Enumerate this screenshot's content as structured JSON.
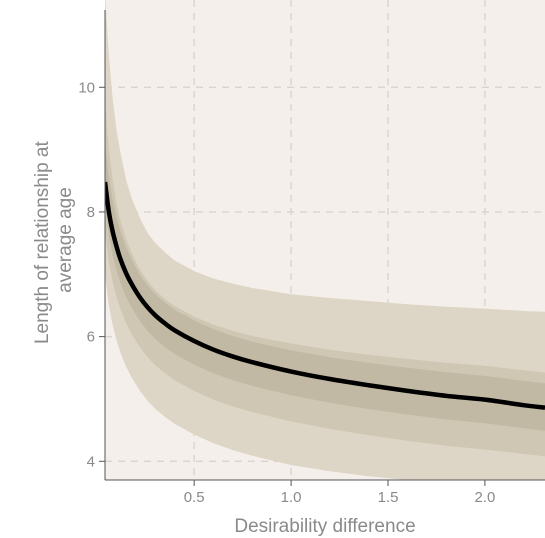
{
  "chart_data": {
    "type": "line",
    "title": "",
    "xlabel": "Desirability difference",
    "ylabel_lines": [
      "Length of relationship at",
      "average age"
    ],
    "xlim": [
      0.04,
      2.31
    ],
    "ylim": [
      3.7,
      11.4
    ],
    "x_ticks": [
      {
        "value": 0.5,
        "label": "0.5"
      },
      {
        "value": 1.0,
        "label": "1.0"
      },
      {
        "value": 1.5,
        "label": "1.5"
      },
      {
        "value": 2.0,
        "label": "2.0"
      }
    ],
    "y_ticks": [
      {
        "value": 4,
        "label": "4"
      },
      {
        "value": 6,
        "label": "6"
      },
      {
        "value": 8,
        "label": "8"
      },
      {
        "value": 10,
        "label": "10"
      }
    ],
    "grid": true,
    "x": [
      0.04,
      0.06,
      0.08,
      0.1,
      0.12,
      0.15,
      0.18,
      0.22,
      0.26,
      0.3,
      0.35,
      0.4,
      0.5,
      0.6,
      0.7,
      0.8,
      1.0,
      1.2,
      1.4,
      1.6,
      1.8,
      2.0,
      2.2,
      2.31
    ],
    "series": [
      {
        "role": "median",
        "values": [
          8.48,
          8.0,
          7.68,
          7.44,
          7.24,
          7.01,
          6.83,
          6.63,
          6.47,
          6.34,
          6.21,
          6.1,
          5.93,
          5.79,
          5.68,
          5.59,
          5.44,
          5.32,
          5.22,
          5.13,
          5.05,
          4.99,
          4.9,
          4.86
        ]
      }
    ],
    "bands": [
      {
        "role": "outer",
        "lower": [
          7.0,
          6.5,
          6.18,
          5.94,
          5.74,
          5.51,
          5.33,
          5.13,
          4.97,
          4.84,
          4.71,
          4.6,
          4.43,
          4.29,
          4.18,
          4.09,
          3.94,
          3.84,
          3.76,
          3.7,
          3.65,
          3.6,
          3.56,
          3.54
        ],
        "upper": [
          11.5,
          10.5,
          9.8,
          9.3,
          8.95,
          8.5,
          8.2,
          7.9,
          7.66,
          7.5,
          7.35,
          7.22,
          7.05,
          6.93,
          6.85,
          6.78,
          6.68,
          6.62,
          6.57,
          6.52,
          6.48,
          6.45,
          6.41,
          6.4
        ]
      },
      {
        "role": "middle",
        "lower": [
          7.7,
          7.2,
          6.88,
          6.64,
          6.44,
          6.21,
          6.03,
          5.83,
          5.67,
          5.54,
          5.41,
          5.3,
          5.13,
          4.99,
          4.88,
          4.79,
          4.64,
          4.52,
          4.42,
          4.33,
          4.25,
          4.19,
          4.12,
          4.08
        ],
        "upper": [
          9.8,
          9.0,
          8.5,
          8.12,
          7.85,
          7.55,
          7.32,
          7.07,
          6.89,
          6.74,
          6.6,
          6.49,
          6.32,
          6.19,
          6.09,
          6.01,
          5.89,
          5.79,
          5.71,
          5.64,
          5.58,
          5.53,
          5.46,
          5.42
        ]
      },
      {
        "role": "inner",
        "lower": [
          8.1,
          7.62,
          7.3,
          7.06,
          6.86,
          6.63,
          6.45,
          6.25,
          6.09,
          5.96,
          5.83,
          5.72,
          5.55,
          5.41,
          5.3,
          5.21,
          5.06,
          4.94,
          4.84,
          4.75,
          4.67,
          4.61,
          4.53,
          4.49
        ],
        "upper": [
          9.1,
          8.55,
          8.18,
          7.9,
          7.68,
          7.42,
          7.22,
          6.99,
          6.82,
          6.68,
          6.54,
          6.43,
          6.26,
          6.12,
          6.01,
          5.92,
          5.78,
          5.67,
          5.58,
          5.5,
          5.43,
          5.37,
          5.29,
          5.25
        ]
      }
    ],
    "colors": {
      "panel_bg": "#f4efea",
      "page_bg": "#ffffff",
      "band_outer": "#ddd5c5",
      "band_middle": "#cfc6b3",
      "band_inner": "#c2b9a4",
      "line": "#000000",
      "grid": "#d9d4cf",
      "axis": "#555555",
      "text": "#8a8a8a"
    }
  }
}
